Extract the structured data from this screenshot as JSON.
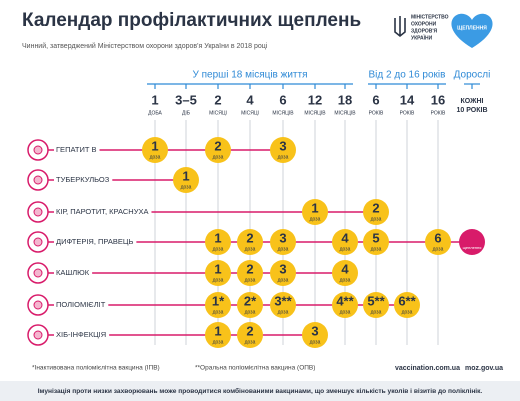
{
  "header": {
    "title": "Календар профілактичних щеплень",
    "subtitle": "Чинний, затверджений Міністерством охорони здоров'я України в 2018 році",
    "ministry": [
      "МІНІСТЕРСТВО",
      "ОХОРОНИ",
      "ЗДОРОВ'Я",
      "УКРАЇНИ"
    ],
    "badge": "ЩЕПЛЕННЯ"
  },
  "groups": [
    "У перші 18 місяців життя",
    "Від 2 до 16 років",
    "Дорослі"
  ],
  "ages": [
    {
      "n": "1",
      "u": "ДОБА"
    },
    {
      "n": "3–5",
      "u": "ДІБ"
    },
    {
      "n": "2",
      "u": "МІСЯЦІ"
    },
    {
      "n": "4",
      "u": "МІСЯЦІ"
    },
    {
      "n": "6",
      "u": "МІСЯЦІВ"
    },
    {
      "n": "12",
      "u": "МІСЯЦІВ"
    },
    {
      "n": "18",
      "u": "МІСЯЦІВ"
    },
    {
      "n": "6",
      "u": "РОКІВ"
    },
    {
      "n": "14",
      "u": "РОКІВ"
    },
    {
      "n": "16",
      "u": "РОКІВ"
    },
    {
      "n": "КОЖНІ",
      "u": "10 РОКІВ"
    }
  ],
  "dose_label": "доза",
  "adult_badge": "щеплення",
  "rows": [
    {
      "name": "ГЕПАТИТ В",
      "doses": [
        "1",
        null,
        "2",
        null,
        "3",
        null,
        null,
        null,
        null,
        null,
        null
      ]
    },
    {
      "name": "ТУБЕРКУЛЬОЗ",
      "doses": [
        null,
        "1",
        null,
        null,
        null,
        null,
        null,
        null,
        null,
        null,
        null
      ]
    },
    {
      "name": "КІР, ПАРОТИТ, КРАСНУХА",
      "doses": [
        null,
        null,
        null,
        null,
        null,
        "1",
        null,
        "2",
        null,
        null,
        null
      ]
    },
    {
      "name": "ДИФТЕРІЯ, ПРАВЕЦЬ",
      "doses": [
        null,
        null,
        "1",
        "2",
        "3",
        null,
        "4",
        "5",
        null,
        "6",
        null
      ]
    },
    {
      "name": "КАШЛЮК",
      "doses": [
        null,
        null,
        "1",
        "2",
        "3",
        null,
        "4",
        null,
        null,
        null,
        null
      ]
    },
    {
      "name": "ПОЛІОМІЄЛІТ",
      "doses": [
        null,
        null,
        "1*",
        "2*",
        "3**",
        null,
        "4**",
        "5**",
        "6**",
        null,
        null
      ]
    },
    {
      "name": "ХІБ-ІНФЕКЦІЯ",
      "doses": [
        null,
        null,
        "1",
        "2",
        null,
        "3",
        null,
        null,
        null,
        null,
        null
      ]
    }
  ],
  "footer": {
    "note1": "*Інактивована поліомієлітна вакцина (ІПВ)",
    "note2": "**Оральна поліомієлітна вакцина (ОПВ)",
    "link1": "vaccination.com.ua",
    "link2": "moz.gov.ua",
    "bottom": "Імунізація проти низки захворювань може проводитися комбінованими вакцинами, що зменшує кількість уколів і візитів до поліклінік."
  }
}
